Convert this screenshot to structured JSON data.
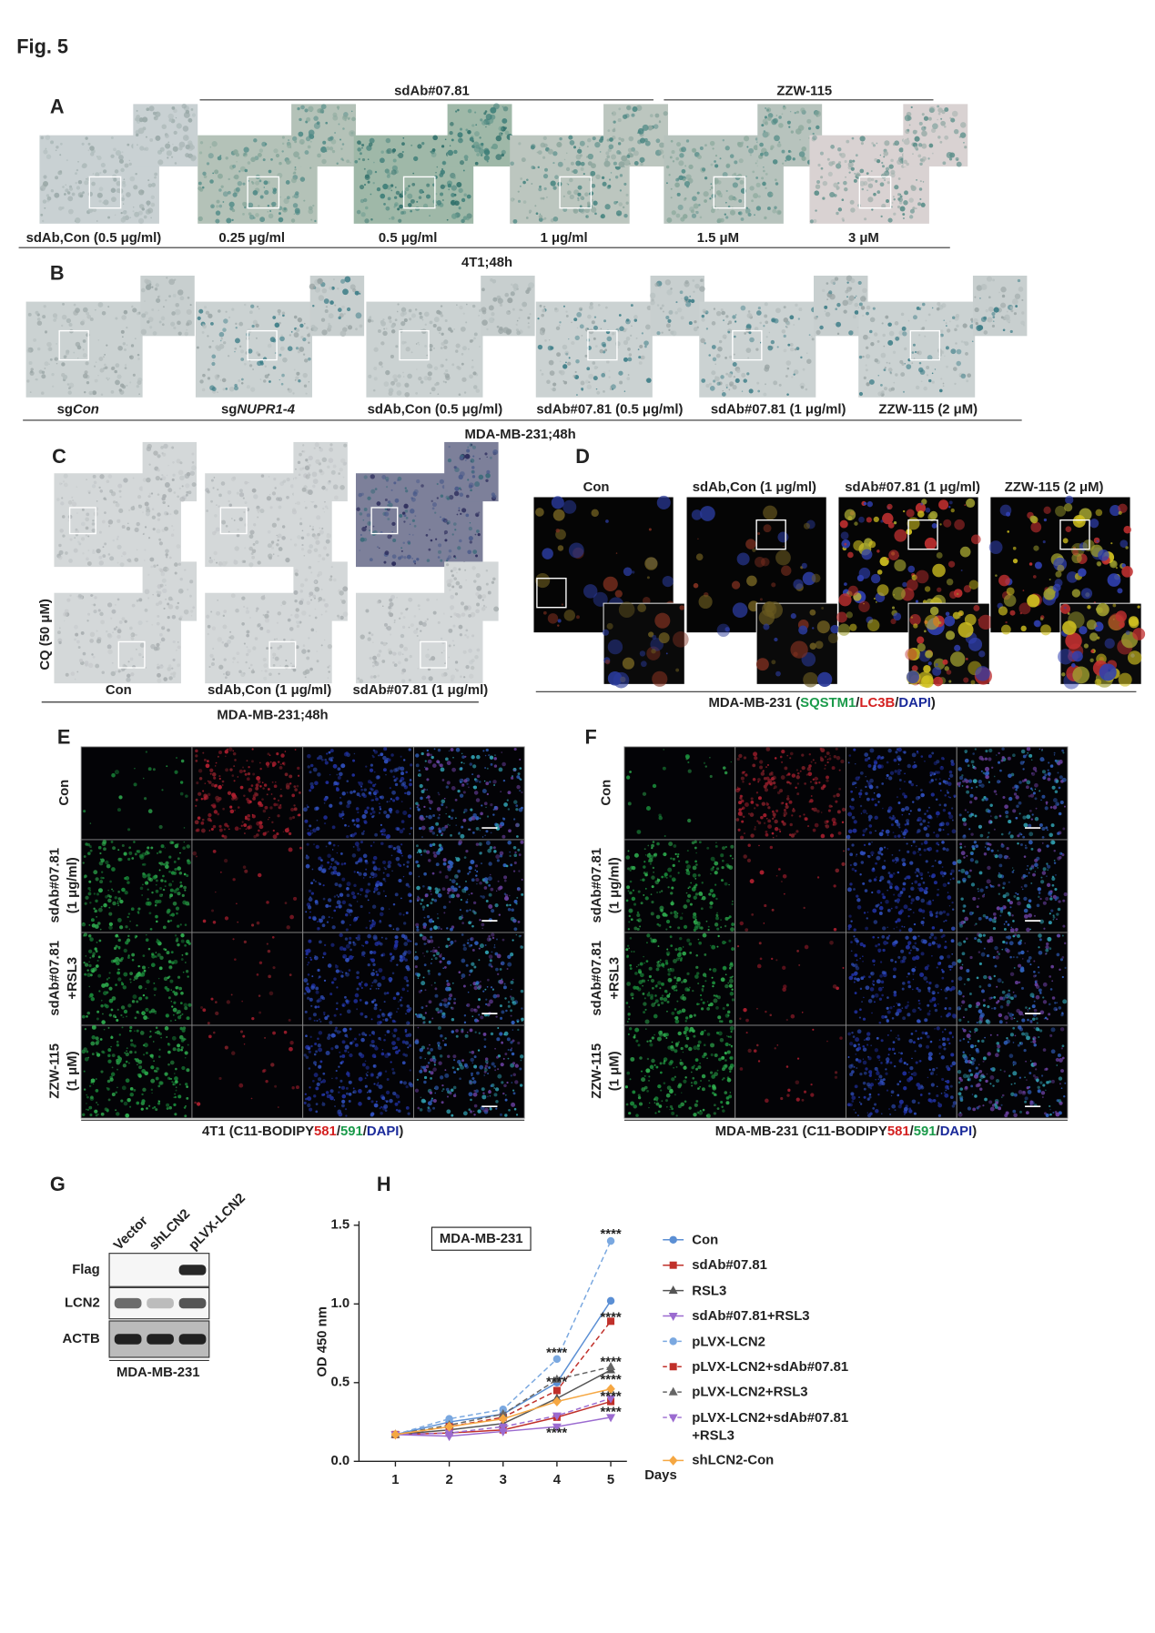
{
  "figure_title": "Fig. 5",
  "panel_a": {
    "label": "A",
    "group_headers": [
      "sdAb#07.81",
      "ZZW-115"
    ],
    "captions": [
      "sdAb,Con (0.5 μg/ml)",
      "0.25 μg/ml",
      "0.5 μg/ml",
      "1 μg/ml",
      "1.5 μM",
      "3 μM"
    ],
    "footer": "4T1;48h"
  },
  "panel_b": {
    "label": "B",
    "captions": [
      {
        "plain": "sg",
        "italic": "Con"
      },
      {
        "plain": "sg",
        "italic": "NUPR1-4"
      },
      {
        "plain": "sdAb,Con (0.5 μg/ml)"
      },
      {
        "plain": "sdAb#07.81 (0.5 μg/ml)"
      },
      {
        "plain": "sdAb#07.81 (1 μg/ml)"
      },
      {
        "plain": "ZZW-115 (2 μM)"
      }
    ],
    "footer": "MDA-MB-231;48h"
  },
  "panel_c": {
    "label": "C",
    "row_label": "CQ (50 μM)",
    "captions": [
      "Con",
      "sdAb,Con (1 μg/ml)",
      "sdAb#07.81 (1 μg/ml)"
    ],
    "footer": "MDA-MB-231;48h"
  },
  "panel_d": {
    "label": "D",
    "columns": [
      "Con",
      "sdAb,Con (1 μg/ml)",
      "sdAb#07.81 (1 μg/ml)",
      "ZZW-115 (2 μM)"
    ],
    "caption": [
      {
        "text": "MDA-MB-231 (",
        "color": "#222222"
      },
      {
        "text": "SQSTM1",
        "color": "#1a9a4a"
      },
      {
        "text": "/",
        "color": "#222222"
      },
      {
        "text": "LC3B",
        "color": "#d42020"
      },
      {
        "text": "/",
        "color": "#222222"
      },
      {
        "text": "DAPI",
        "color": "#1a2a9a"
      },
      {
        "text": ")",
        "color": "#222222"
      }
    ]
  },
  "panel_e": {
    "label": "E",
    "row_labels": [
      [
        "Con"
      ],
      [
        "sdAb#07.81",
        "(1 μg/ml)"
      ],
      [
        "sdAb#07.81",
        "+RSL3"
      ],
      [
        "ZZW-115",
        "(1 μM)"
      ]
    ],
    "caption": [
      {
        "text": "4T1 (C11-BODIPY",
        "color": "#222222"
      },
      {
        "text": "581",
        "color": "#d42020"
      },
      {
        "text": "/",
        "color": "#222222"
      },
      {
        "text": "591",
        "color": "#1a9a4a"
      },
      {
        "text": "/",
        "color": "#222222"
      },
      {
        "text": "DAPI",
        "color": "#1a2a9a"
      },
      {
        "text": ")",
        "color": "#222222"
      }
    ]
  },
  "panel_f": {
    "label": "F",
    "row_labels": [
      [
        "Con"
      ],
      [
        "sdAb#07.81",
        "(1 μg/ml)"
      ],
      [
        "sdAb#07.81",
        "+RSL3"
      ],
      [
        "ZZW-115",
        "(1 μM)"
      ]
    ],
    "caption": [
      {
        "text": "MDA-MB-231 (C11-BODIPY",
        "color": "#222222"
      },
      {
        "text": "581",
        "color": "#d42020"
      },
      {
        "text": "/",
        "color": "#222222"
      },
      {
        "text": "591",
        "color": "#1a9a4a"
      },
      {
        "text": "/",
        "color": "#222222"
      },
      {
        "text": "DAPI",
        "color": "#1a2a9a"
      },
      {
        "text": ")",
        "color": "#222222"
      }
    ]
  },
  "panel_g": {
    "label": "G",
    "lanes": [
      "Vector",
      "shLCN2",
      "pLVX-LCN2"
    ],
    "rows": [
      "Flag",
      "LCN2",
      "ACTB"
    ],
    "caption": "MDA-MB-231"
  },
  "panel_h": {
    "label": "H"
  },
  "chart_data": {
    "type": "line",
    "title": "MDA-MB-231",
    "y_label": "OD 450 nm",
    "x_label": "Days",
    "x": [
      1,
      2,
      3,
      4,
      5
    ],
    "xlim": [
      0.2,
      5.3
    ],
    "xticks": [
      1,
      2,
      3,
      4,
      5
    ],
    "ylim": [
      0,
      1.5
    ],
    "yticks": [
      {
        "value": 0,
        "label": "0.0"
      },
      0.5,
      {
        "value": 1,
        "label": "1.0"
      },
      1.5
    ],
    "series": [
      {
        "name": "Con",
        "color": "#5b8fd4",
        "dashed": false,
        "marker": "circle",
        "values": [
          0.17,
          0.25,
          0.3,
          0.5,
          1.02
        ]
      },
      {
        "name": "sdAb#07.81",
        "color": "#c0302a",
        "dashed": false,
        "marker": "square",
        "values": [
          0.17,
          0.18,
          0.2,
          0.28,
          0.38
        ]
      },
      {
        "name": "RSL3",
        "color": "#555555",
        "dashed": false,
        "marker": "triangle",
        "values": [
          0.17,
          0.2,
          0.24,
          0.4,
          0.58
        ]
      },
      {
        "name": "sdAb#07.81+RSL3",
        "color": "#9b6bd0",
        "dashed": false,
        "marker": "triangle-down",
        "values": [
          0.17,
          0.16,
          0.19,
          0.22,
          0.28
        ]
      },
      {
        "name": "pLVX-LCN2",
        "color": "#7aa8e0",
        "dashed": true,
        "marker": "circle",
        "values": [
          0.17,
          0.27,
          0.33,
          0.65,
          1.4
        ]
      },
      {
        "name": "pLVX-LCN2+sdAb#07.81",
        "color": "#c0302a",
        "dashed": true,
        "marker": "square",
        "values": [
          0.17,
          0.22,
          0.28,
          0.45,
          0.89
        ]
      },
      {
        "name": "pLVX-LCN2+RSL3",
        "color": "#666666",
        "dashed": true,
        "marker": "triangle",
        "values": [
          0.17,
          0.23,
          0.3,
          0.52,
          0.6
        ]
      },
      {
        "name": "pLVX-LCN2+sdAb#07.81\n+RSL3",
        "color": "#9b6bd0",
        "dashed": true,
        "marker": "triangle-down",
        "values": [
          0.17,
          0.18,
          0.22,
          0.29,
          0.4
        ]
      },
      {
        "name": "shLCN2-Con",
        "color": "#f5a742",
        "dashed": false,
        "marker": "diamond",
        "values": [
          0.17,
          0.22,
          0.27,
          0.38,
          0.46
        ]
      }
    ],
    "annotations": [
      "****",
      "****",
      "****",
      "****",
      "****",
      "****",
      "****",
      "****",
      "****"
    ]
  }
}
